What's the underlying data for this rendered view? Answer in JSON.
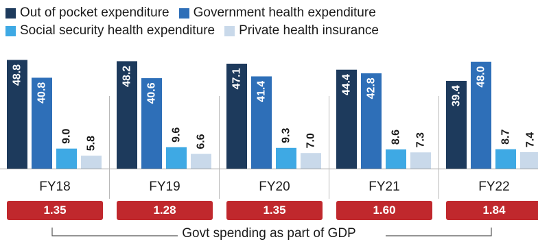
{
  "legend": [
    {
      "label": "Out of pocket expenditure",
      "color": "#1d3a5c"
    },
    {
      "label": "Government health expenditure",
      "color": "#2e6fb8"
    },
    {
      "label": "Social security health expenditure",
      "color": "#3ea9e4"
    },
    {
      "label": "Private health insurance",
      "color": "#c9d9ea"
    }
  ],
  "gdp_caption": "Govt spending as part of GDP",
  "gdp_color": "#c0282d",
  "chart_data": {
    "type": "bar",
    "categories": [
      "FY18",
      "FY19",
      "FY20",
      "FY21",
      "FY22"
    ],
    "series": [
      {
        "name": "Out of pocket expenditure",
        "color": "#1d3a5c",
        "values": [
          48.8,
          48.2,
          47.1,
          44.4,
          39.4
        ],
        "labels": [
          "48.8",
          "48.2",
          "47.1",
          "44.4",
          "39.4"
        ]
      },
      {
        "name": "Government health expenditure",
        "color": "#2e6fb8",
        "values": [
          40.8,
          40.6,
          41.4,
          42.8,
          48.0
        ],
        "labels": [
          "40.8",
          "40.6",
          "41.4",
          "42.8",
          "48.0"
        ]
      },
      {
        "name": "Social security health expenditure",
        "color": "#3ea9e4",
        "values": [
          9.0,
          9.6,
          9.3,
          8.6,
          8.7
        ],
        "labels": [
          "9.0",
          "9.6",
          "9.3",
          "8.6",
          "8.7"
        ]
      },
      {
        "name": "Private health insurance",
        "color": "#c9d9ea",
        "values": [
          5.8,
          6.6,
          7.0,
          7.3,
          7.4
        ],
        "labels": [
          "5.8",
          "6.6",
          "7.0",
          "7.3",
          "7.4"
        ]
      }
    ],
    "gdp_share": [
      "1.35",
      "1.28",
      "1.35",
      "1.60",
      "1.84"
    ],
    "ylim": [
      0,
      50
    ],
    "grid": false,
    "legend_position": "top"
  }
}
